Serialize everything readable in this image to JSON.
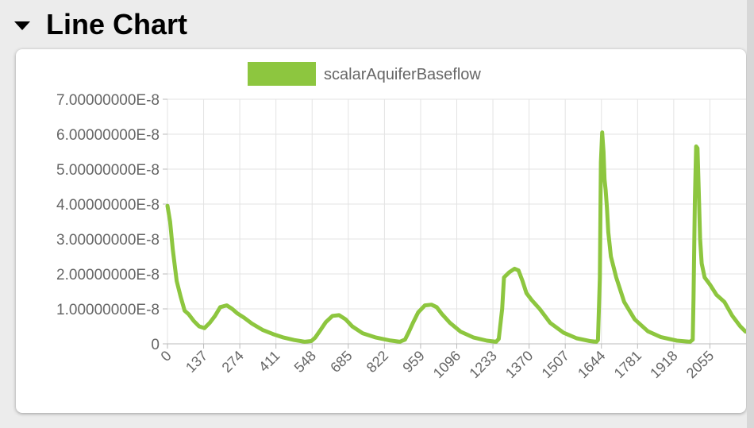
{
  "section": {
    "title": "Line Chart",
    "toggle_icon": "triangle-down-icon"
  },
  "chart_data": {
    "type": "line",
    "title": "",
    "xlabel": "",
    "ylabel": "",
    "legend_position": "top-center",
    "grid": true,
    "color": "#8dc63f",
    "xlim": [
      0,
      2192
    ],
    "ylim": [
      0,
      7e-08
    ],
    "y_ticks": [
      0,
      1e-08,
      2e-08,
      3e-08,
      4e-08,
      5e-08,
      6e-08,
      7e-08
    ],
    "y_tick_labels": [
      "0",
      "1.00000000E-8",
      "2.00000000E-8",
      "3.00000000E-8",
      "4.00000000E-8",
      "5.00000000E-8",
      "6.00000000E-8",
      "7.00000000E-8"
    ],
    "x_ticks": [
      0,
      137,
      274,
      411,
      548,
      685,
      822,
      959,
      1096,
      1233,
      1370,
      1507,
      1644,
      1781,
      1918,
      2055
    ],
    "x_tick_labels": [
      "0",
      "137",
      "274",
      "411",
      "548",
      "685",
      "822",
      "959",
      "1096",
      "1233",
      "1370",
      "1507",
      "1644",
      "1781",
      "1918",
      "2055"
    ],
    "series": [
      {
        "name": "scalarAquiferBaseflow",
        "x": [
          0,
          10,
          20,
          35,
          50,
          65,
          80,
          100,
          120,
          140,
          160,
          180,
          200,
          225,
          245,
          265,
          290,
          320,
          360,
          400,
          440,
          480,
          520,
          545,
          560,
          580,
          600,
          625,
          650,
          675,
          700,
          740,
          790,
          840,
          880,
          900,
          915,
          930,
          950,
          975,
          1000,
          1020,
          1040,
          1070,
          1110,
          1160,
          1210,
          1245,
          1255,
          1268,
          1275,
          1295,
          1315,
          1330,
          1345,
          1360,
          1380,
          1410,
          1450,
          1500,
          1550,
          1600,
          1625,
          1631,
          1638,
          1642,
          1647,
          1652,
          1656,
          1660,
          1665,
          1670,
          1680,
          1700,
          1730,
          1770,
          1820,
          1870,
          1930,
          1980,
          1990,
          1993,
          1998,
          2003,
          2008,
          2012,
          2018,
          2024,
          2035,
          2055,
          2080,
          2110,
          2140,
          2170,
          2190
        ],
        "values": [
          3.95e-08,
          3.5e-08,
          2.7e-08,
          1.8e-08,
          1.35e-08,
          9.5e-09,
          8.5e-09,
          6.5e-09,
          5e-09,
          4.5e-09,
          6e-09,
          8e-09,
          1.05e-08,
          1.1e-08,
          1e-08,
          8.7e-09,
          7.5e-09,
          5.8e-09,
          4e-09,
          2.8e-09,
          1.8e-09,
          1.1e-09,
          6e-10,
          8e-10,
          1.8e-09,
          4e-09,
          6.2e-09,
          8e-09,
          8.2e-09,
          7e-09,
          5e-09,
          3e-09,
          1.8e-09,
          1e-09,
          6e-10,
          1.2e-09,
          3.5e-09,
          6e-09,
          9e-09,
          1.1e-08,
          1.12e-08,
          1.05e-08,
          8.5e-09,
          6e-09,
          3.5e-09,
          1.8e-09,
          9e-10,
          6e-10,
          1.4e-09,
          1e-08,
          1.9e-08,
          2.05e-08,
          2.15e-08,
          2.1e-08,
          1.8e-08,
          1.45e-08,
          1.25e-08,
          1e-08,
          6e-09,
          3.2e-09,
          1.6e-09,
          8e-10,
          6e-10,
          1.1e-09,
          1.9e-08,
          5.2e-08,
          6.05e-08,
          5.5e-08,
          4.7e-08,
          4.4e-08,
          3.9e-08,
          3.2e-08,
          2.5e-08,
          1.9e-08,
          1.2e-08,
          7e-09,
          3.6e-09,
          1.9e-09,
          9e-10,
          6e-10,
          1.2e-09,
          1.3e-08,
          4.1e-08,
          5.65e-08,
          5.6e-08,
          4.6e-08,
          3e-08,
          2.3e-08,
          1.9e-08,
          1.7e-08,
          1.4e-08,
          1.2e-08,
          8e-09,
          5e-09,
          3.5e-09
        ]
      }
    ]
  }
}
